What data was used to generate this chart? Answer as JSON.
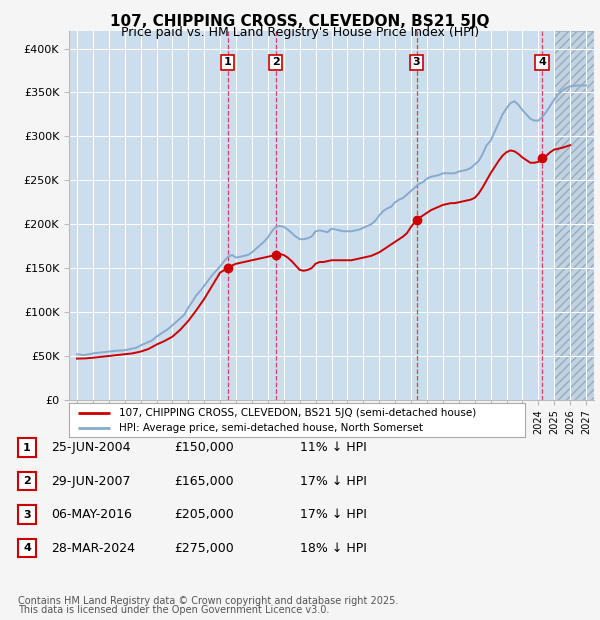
{
  "title": "107, CHIPPING CROSS, CLEVEDON, BS21 5JQ",
  "subtitle": "Price paid vs. HM Land Registry's House Price Index (HPI)",
  "legend_label_red": "107, CHIPPING CROSS, CLEVEDON, BS21 5JQ (semi-detached house)",
  "legend_label_blue": "HPI: Average price, semi-detached house, North Somerset",
  "footer_line1": "Contains HM Land Registry data © Crown copyright and database right 2025.",
  "footer_line2": "This data is licensed under the Open Government Licence v3.0.",
  "ylim": [
    0,
    420000
  ],
  "yticks": [
    0,
    50000,
    100000,
    150000,
    200000,
    250000,
    300000,
    350000,
    400000
  ],
  "ytick_labels": [
    "£0",
    "£50K",
    "£100K",
    "£150K",
    "£200K",
    "£250K",
    "£300K",
    "£350K",
    "£400K"
  ],
  "xlim_start": 1994.5,
  "xlim_end": 2027.5,
  "background_color": "#ccdded",
  "fig_bg_color": "#f5f5f5",
  "grid_color": "#ffffff",
  "red_color": "#cc0000",
  "blue_color": "#88aacc",
  "transactions": [
    {
      "label": "1",
      "date": 2004.48,
      "price": 150000,
      "pct": "11% ↓ HPI",
      "date_str": "25-JUN-2004"
    },
    {
      "label": "2",
      "date": 2007.49,
      "price": 165000,
      "pct": "17% ↓ HPI",
      "date_str": "29-JUN-2007"
    },
    {
      "label": "3",
      "date": 2016.35,
      "price": 205000,
      "pct": "17% ↓ HPI",
      "date_str": "06-MAY-2016"
    },
    {
      "label": "4",
      "date": 2024.24,
      "price": 275000,
      "pct": "18% ↓ HPI",
      "date_str": "28-MAR-2024"
    }
  ],
  "hpi_data": [
    [
      1995.0,
      52000
    ],
    [
      1995.08,
      51800
    ],
    [
      1995.17,
      51600
    ],
    [
      1995.25,
      51400
    ],
    [
      1995.33,
      51200
    ],
    [
      1995.42,
      51000
    ],
    [
      1995.5,
      51200
    ],
    [
      1995.58,
      51500
    ],
    [
      1995.67,
      51800
    ],
    [
      1995.75,
      52000
    ],
    [
      1995.83,
      52200
    ],
    [
      1995.92,
      52400
    ],
    [
      1996.0,
      53000
    ],
    [
      1996.25,
      53500
    ],
    [
      1996.5,
      54000
    ],
    [
      1996.75,
      54500
    ],
    [
      1997.0,
      55000
    ],
    [
      1997.25,
      55500
    ],
    [
      1997.5,
      56000
    ],
    [
      1997.75,
      56300
    ],
    [
      1998.0,
      56500
    ],
    [
      1998.25,
      57500
    ],
    [
      1998.5,
      58500
    ],
    [
      1998.75,
      59500
    ],
    [
      1999.0,
      62000
    ],
    [
      1999.25,
      64000
    ],
    [
      1999.5,
      66000
    ],
    [
      1999.75,
      68000
    ],
    [
      2000.0,
      72000
    ],
    [
      2000.25,
      75000
    ],
    [
      2000.5,
      78000
    ],
    [
      2000.75,
      81000
    ],
    [
      2001.0,
      85000
    ],
    [
      2001.25,
      89000
    ],
    [
      2001.5,
      93000
    ],
    [
      2001.75,
      97000
    ],
    [
      2002.0,
      105000
    ],
    [
      2002.25,
      112000
    ],
    [
      2002.5,
      119000
    ],
    [
      2002.75,
      124000
    ],
    [
      2003.0,
      130000
    ],
    [
      2003.25,
      136000
    ],
    [
      2003.5,
      142000
    ],
    [
      2003.75,
      147000
    ],
    [
      2004.0,
      152000
    ],
    [
      2004.25,
      158000
    ],
    [
      2004.5,
      163000
    ],
    [
      2004.75,
      165000
    ],
    [
      2005.0,
      162000
    ],
    [
      2005.25,
      163000
    ],
    [
      2005.5,
      164000
    ],
    [
      2005.75,
      165000
    ],
    [
      2006.0,
      168000
    ],
    [
      2006.25,
      172000
    ],
    [
      2006.5,
      176000
    ],
    [
      2006.75,
      180000
    ],
    [
      2007.0,
      185000
    ],
    [
      2007.25,
      192000
    ],
    [
      2007.5,
      197000
    ],
    [
      2007.75,
      198000
    ],
    [
      2008.0,
      197000
    ],
    [
      2008.25,
      194000
    ],
    [
      2008.5,
      190000
    ],
    [
      2008.75,
      186000
    ],
    [
      2009.0,
      183000
    ],
    [
      2009.25,
      183000
    ],
    [
      2009.5,
      184000
    ],
    [
      2009.75,
      186000
    ],
    [
      2010.0,
      192000
    ],
    [
      2010.25,
      193000
    ],
    [
      2010.5,
      192000
    ],
    [
      2010.75,
      191000
    ],
    [
      2011.0,
      195000
    ],
    [
      2011.25,
      194000
    ],
    [
      2011.5,
      193000
    ],
    [
      2011.75,
      192000
    ],
    [
      2012.0,
      192000
    ],
    [
      2012.25,
      192000
    ],
    [
      2012.5,
      193000
    ],
    [
      2012.75,
      194000
    ],
    [
      2013.0,
      196000
    ],
    [
      2013.25,
      198000
    ],
    [
      2013.5,
      200000
    ],
    [
      2013.75,
      204000
    ],
    [
      2014.0,
      210000
    ],
    [
      2014.25,
      215000
    ],
    [
      2014.5,
      218000
    ],
    [
      2014.75,
      220000
    ],
    [
      2015.0,
      225000
    ],
    [
      2015.25,
      228000
    ],
    [
      2015.5,
      230000
    ],
    [
      2015.75,
      234000
    ],
    [
      2016.0,
      238000
    ],
    [
      2016.25,
      242000
    ],
    [
      2016.5,
      246000
    ],
    [
      2016.75,
      248000
    ],
    [
      2017.0,
      252000
    ],
    [
      2017.25,
      254000
    ],
    [
      2017.5,
      255000
    ],
    [
      2017.75,
      256000
    ],
    [
      2018.0,
      258000
    ],
    [
      2018.25,
      258000
    ],
    [
      2018.5,
      258000
    ],
    [
      2018.75,
      258000
    ],
    [
      2019.0,
      260000
    ],
    [
      2019.25,
      261000
    ],
    [
      2019.5,
      262000
    ],
    [
      2019.75,
      264000
    ],
    [
      2020.0,
      268000
    ],
    [
      2020.25,
      272000
    ],
    [
      2020.5,
      280000
    ],
    [
      2020.75,
      290000
    ],
    [
      2021.0,
      295000
    ],
    [
      2021.25,
      305000
    ],
    [
      2021.5,
      315000
    ],
    [
      2021.75,
      325000
    ],
    [
      2022.0,
      332000
    ],
    [
      2022.25,
      338000
    ],
    [
      2022.5,
      340000
    ],
    [
      2022.75,
      336000
    ],
    [
      2023.0,
      330000
    ],
    [
      2023.25,
      325000
    ],
    [
      2023.5,
      320000
    ],
    [
      2023.75,
      318000
    ],
    [
      2024.0,
      318000
    ],
    [
      2024.25,
      322000
    ],
    [
      2024.5,
      328000
    ],
    [
      2024.75,
      335000
    ],
    [
      2025.0,
      342000
    ],
    [
      2025.25,
      348000
    ],
    [
      2025.5,
      352000
    ],
    [
      2025.75,
      355000
    ],
    [
      2026.0,
      357000
    ],
    [
      2026.5,
      358000
    ],
    [
      2027.0,
      358000
    ]
  ],
  "sold_data": [
    [
      1995.0,
      47000
    ],
    [
      1995.5,
      47200
    ],
    [
      1996.0,
      48000
    ],
    [
      1996.5,
      49000
    ],
    [
      1997.0,
      50000
    ],
    [
      1997.5,
      51000
    ],
    [
      1998.0,
      52000
    ],
    [
      1998.5,
      53000
    ],
    [
      1999.0,
      55000
    ],
    [
      1999.5,
      58000
    ],
    [
      2000.0,
      63000
    ],
    [
      2000.5,
      67000
    ],
    [
      2001.0,
      72000
    ],
    [
      2001.5,
      80000
    ],
    [
      2002.0,
      90000
    ],
    [
      2002.5,
      102000
    ],
    [
      2003.0,
      115000
    ],
    [
      2003.5,
      130000
    ],
    [
      2004.0,
      145000
    ],
    [
      2004.48,
      150000
    ],
    [
      2004.75,
      153000
    ],
    [
      2005.0,
      155000
    ],
    [
      2005.25,
      156000
    ],
    [
      2005.5,
      157000
    ],
    [
      2005.75,
      158000
    ],
    [
      2006.0,
      159000
    ],
    [
      2006.25,
      160000
    ],
    [
      2006.5,
      161000
    ],
    [
      2006.75,
      162000
    ],
    [
      2007.0,
      163000
    ],
    [
      2007.49,
      165000
    ],
    [
      2007.75,
      166000
    ],
    [
      2008.0,
      165000
    ],
    [
      2008.25,
      162000
    ],
    [
      2008.5,
      158000
    ],
    [
      2008.75,
      153000
    ],
    [
      2009.0,
      148000
    ],
    [
      2009.25,
      147000
    ],
    [
      2009.5,
      148000
    ],
    [
      2009.75,
      150000
    ],
    [
      2010.0,
      155000
    ],
    [
      2010.25,
      157000
    ],
    [
      2010.5,
      157000
    ],
    [
      2010.75,
      158000
    ],
    [
      2011.0,
      159000
    ],
    [
      2011.25,
      159000
    ],
    [
      2011.5,
      159000
    ],
    [
      2011.75,
      159000
    ],
    [
      2012.0,
      159000
    ],
    [
      2012.25,
      159000
    ],
    [
      2012.5,
      160000
    ],
    [
      2012.75,
      161000
    ],
    [
      2013.0,
      162000
    ],
    [
      2013.25,
      163000
    ],
    [
      2013.5,
      164000
    ],
    [
      2013.75,
      166000
    ],
    [
      2014.0,
      168000
    ],
    [
      2014.25,
      171000
    ],
    [
      2014.5,
      174000
    ],
    [
      2014.75,
      177000
    ],
    [
      2015.0,
      180000
    ],
    [
      2015.25,
      183000
    ],
    [
      2015.5,
      186000
    ],
    [
      2015.75,
      190000
    ],
    [
      2016.0,
      197000
    ],
    [
      2016.35,
      205000
    ],
    [
      2016.5,
      207000
    ],
    [
      2016.75,
      210000
    ],
    [
      2017.0,
      213000
    ],
    [
      2017.25,
      216000
    ],
    [
      2017.5,
      218000
    ],
    [
      2017.75,
      220000
    ],
    [
      2018.0,
      222000
    ],
    [
      2018.25,
      223000
    ],
    [
      2018.5,
      224000
    ],
    [
      2018.75,
      224000
    ],
    [
      2019.0,
      225000
    ],
    [
      2019.25,
      226000
    ],
    [
      2019.5,
      227000
    ],
    [
      2019.75,
      228000
    ],
    [
      2020.0,
      230000
    ],
    [
      2020.25,
      235000
    ],
    [
      2020.5,
      242000
    ],
    [
      2020.75,
      250000
    ],
    [
      2021.0,
      258000
    ],
    [
      2021.25,
      265000
    ],
    [
      2021.5,
      272000
    ],
    [
      2021.75,
      278000
    ],
    [
      2022.0,
      282000
    ],
    [
      2022.25,
      284000
    ],
    [
      2022.5,
      283000
    ],
    [
      2022.75,
      280000
    ],
    [
      2023.0,
      276000
    ],
    [
      2023.25,
      273000
    ],
    [
      2023.5,
      270000
    ],
    [
      2023.75,
      270000
    ],
    [
      2024.0,
      271000
    ],
    [
      2024.24,
      275000
    ],
    [
      2024.5,
      278000
    ],
    [
      2024.75,
      282000
    ],
    [
      2025.0,
      285000
    ],
    [
      2025.5,
      287000
    ],
    [
      2026.0,
      290000
    ]
  ]
}
